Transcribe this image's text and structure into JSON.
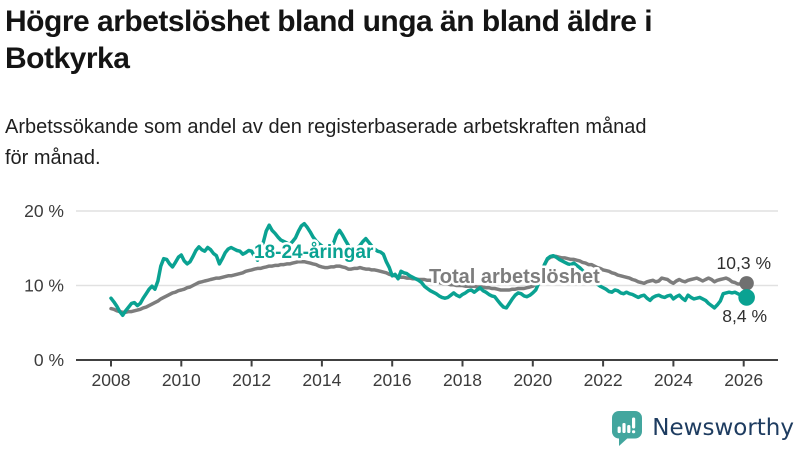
{
  "chart_data": {
    "type": "line",
    "title": "Högre arbetslöshet bland unga än bland äldre i\nBotkyrka",
    "subtitle": "Arbetssökande som andel av den registerbaserade arbetskraften månad\nför månad.",
    "unit": "%",
    "x_axis": {
      "range": [
        2008,
        2027
      ],
      "ticks": [
        2008,
        2010,
        2012,
        2014,
        2016,
        2018,
        2020,
        2022,
        2024,
        2026
      ]
    },
    "y_axis": {
      "range": [
        0,
        20
      ],
      "ticks": [
        {
          "value": 0,
          "label": "0 %"
        },
        {
          "value": 10,
          "label": "10 %"
        },
        {
          "value": 20,
          "label": "20 %"
        }
      ]
    },
    "grid": true,
    "legend_position": "inline-labels-on-lines",
    "colors": {
      "grid": "#e1e1e1",
      "axis": "#404040",
      "tick_text": "#3c3c3c",
      "end_label": "#303030"
    },
    "series": [
      {
        "name": "18-24-åringar",
        "label": "18-24-åringar",
        "color": "#0aa292",
        "dot_color": "#0aa292",
        "end_label": "8,4 %",
        "end_value": 8.4,
        "start_year": 2008,
        "months_per_step": 1,
        "values": [
          8.3,
          7.8,
          7.2,
          6.5,
          6.0,
          6.6,
          7.1,
          7.6,
          7.7,
          7.3,
          7.6,
          8.3,
          8.9,
          9.5,
          9.9,
          9.5,
          10.6,
          12.6,
          13.6,
          13.5,
          12.9,
          12.5,
          13.1,
          13.8,
          14.1,
          13.3,
          12.9,
          13.2,
          13.9,
          14.7,
          15.2,
          14.8,
          14.6,
          15.1,
          14.8,
          14.3,
          14.0,
          12.9,
          13.6,
          14.4,
          14.9,
          15.1,
          14.9,
          14.7,
          14.6,
          14.2,
          14.4,
          14.7,
          14.6,
          13.9,
          13.4,
          14.6,
          15.8,
          17.3,
          18.1,
          17.4,
          17.0,
          16.5,
          16.1,
          15.9,
          15.7,
          15.5,
          15.9,
          16.4,
          17.3,
          18.0,
          18.3,
          17.8,
          17.2,
          16.5,
          16.0,
          15.6,
          15.3,
          13.9,
          14.3,
          14.9,
          15.7,
          16.8,
          17.4,
          16.8,
          16.1,
          15.4,
          14.4,
          14.8,
          15.0,
          15.4,
          15.9,
          16.3,
          15.8,
          15.3,
          14.9,
          14.6,
          14.5,
          14.2,
          13.2,
          12.4,
          11.3,
          11.5,
          10.9,
          11.9,
          11.7,
          11.6,
          11.3,
          11.1,
          10.9,
          10.7,
          10.4,
          9.9,
          9.6,
          9.3,
          9.1,
          8.9,
          8.6,
          8.4,
          8.3,
          8.4,
          8.7,
          9.0,
          8.7,
          8.5,
          8.8,
          9.0,
          9.3,
          9.4,
          9.1,
          9.4,
          9.7,
          9.3,
          9.1,
          8.8,
          8.6,
          8.5,
          8.0,
          7.5,
          7.1,
          7.0,
          7.6,
          8.2,
          8.7,
          9.0,
          8.9,
          8.6,
          8.5,
          8.7,
          9.0,
          9.4,
          10.3,
          11.6,
          12.8,
          13.6,
          13.9,
          14.0,
          13.8,
          13.5,
          13.3,
          13.1,
          12.9,
          12.8,
          13.0,
          12.7,
          12.4,
          12.0,
          11.6,
          11.2,
          10.8,
          10.5,
          10.2,
          9.9,
          9.7,
          9.5,
          9.2,
          9.1,
          9.4,
          9.3,
          9.0,
          8.9,
          9.1,
          8.9,
          8.8,
          8.6,
          8.4,
          8.6,
          8.7,
          8.3,
          8.0,
          8.4,
          8.6,
          8.7,
          8.5,
          8.4,
          8.6,
          8.7,
          8.2,
          8.5,
          8.7,
          8.3,
          8.0,
          8.7,
          8.4,
          8.2,
          8.3,
          8.4,
          8.2,
          8.0,
          7.6,
          7.3,
          7.0,
          7.4,
          7.9,
          8.9,
          9.0,
          9.1,
          9.0,
          9.1,
          8.9,
          8.7,
          8.5,
          8.4
        ]
      },
      {
        "name": "Total arbetslöshet",
        "label": "Total arbetslöshet",
        "color": "#7d7d7d",
        "dot_color": "#707070",
        "end_label": "10,3 %",
        "end_value": 10.3,
        "start_year": 2008,
        "months_per_step": 1,
        "values": [
          6.9,
          6.8,
          6.6,
          6.5,
          6.4,
          6.4,
          6.5,
          6.5,
          6.6,
          6.7,
          6.8,
          7.0,
          7.1,
          7.3,
          7.5,
          7.7,
          7.9,
          8.2,
          8.4,
          8.6,
          8.8,
          9.0,
          9.1,
          9.3,
          9.4,
          9.5,
          9.7,
          9.8,
          10.0,
          10.2,
          10.4,
          10.5,
          10.6,
          10.7,
          10.8,
          10.9,
          11.0,
          11.0,
          11.1,
          11.2,
          11.3,
          11.3,
          11.4,
          11.5,
          11.6,
          11.7,
          11.9,
          12.0,
          12.1,
          12.2,
          12.3,
          12.3,
          12.4,
          12.5,
          12.6,
          12.6,
          12.7,
          12.7,
          12.8,
          12.8,
          12.9,
          12.9,
          13.0,
          13.1,
          13.2,
          13.2,
          13.2,
          13.1,
          13.0,
          12.9,
          12.8,
          12.6,
          12.5,
          12.4,
          12.4,
          12.5,
          12.5,
          12.6,
          12.6,
          12.5,
          12.4,
          12.2,
          12.2,
          12.3,
          12.3,
          12.4,
          12.3,
          12.2,
          12.2,
          12.1,
          12.1,
          12.0,
          11.9,
          11.8,
          11.7,
          11.5,
          11.4,
          11.3,
          11.2,
          11.1,
          11.1,
          11.0,
          11.0,
          10.9,
          10.9,
          10.8,
          10.8,
          10.8,
          10.7,
          10.7,
          10.6,
          10.5,
          10.4,
          10.3,
          10.2,
          10.2,
          10.1,
          10.1,
          10.0,
          10.0,
          10.0,
          9.9,
          9.9,
          9.9,
          9.9,
          9.8,
          9.8,
          9.8,
          9.7,
          9.7,
          9.6,
          9.6,
          9.5,
          9.4,
          9.4,
          9.4,
          9.4,
          9.5,
          9.5,
          9.6,
          9.6,
          9.6,
          9.7,
          9.8,
          9.9,
          10.2,
          10.9,
          11.9,
          12.8,
          13.5,
          13.8,
          13.9,
          13.9,
          13.8,
          13.7,
          13.7,
          13.6,
          13.5,
          13.5,
          13.4,
          13.3,
          13.1,
          13.0,
          12.8,
          12.8,
          12.6,
          12.4,
          12.3,
          12.1,
          12.0,
          11.9,
          11.7,
          11.6,
          11.4,
          11.3,
          11.2,
          11.1,
          11.0,
          10.8,
          10.7,
          10.5,
          10.4,
          10.3,
          10.5,
          10.6,
          10.7,
          10.5,
          10.6,
          11.0,
          10.9,
          10.8,
          10.5,
          10.3,
          10.6,
          10.8,
          10.6,
          10.5,
          10.7,
          10.8,
          10.9,
          11.0,
          10.8,
          10.6,
          10.8,
          11.0,
          10.8,
          10.5,
          10.7,
          10.8,
          10.9,
          11.0,
          10.8,
          10.5,
          10.4,
          10.2,
          10.2,
          10.3,
          10.3
        ]
      }
    ]
  },
  "footer": {
    "brand": "Newsworthy",
    "logo_teal": "#43a69e",
    "logo_navy": "#1e3c60"
  }
}
